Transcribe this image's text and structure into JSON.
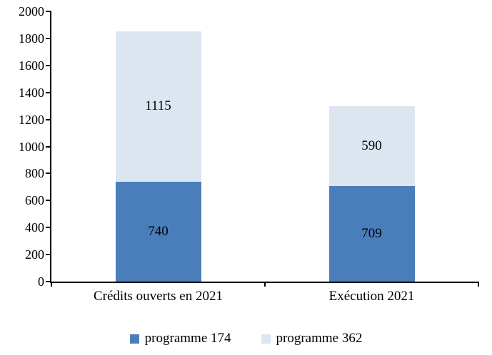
{
  "chart_data": {
    "type": "bar",
    "stacked": true,
    "title": "",
    "categories": [
      "Crédits ouverts en 2021",
      "Exécution 2021"
    ],
    "series": [
      {
        "name": "programme 174",
        "color": "#4A7EBB",
        "values": [
          740,
          709
        ]
      },
      {
        "name": "programme 362",
        "color": "#DCE6F1",
        "values": [
          1115,
          590
        ]
      }
    ],
    "ylim": [
      0,
      2000
    ],
    "yticks": [
      0,
      200,
      400,
      600,
      800,
      1000,
      1200,
      1400,
      1600,
      1800,
      2000
    ],
    "grid": false,
    "legend_position": "bottom",
    "bar_value_labels": true,
    "xlabel": "",
    "ylabel": ""
  },
  "colors": {
    "axis": "#000000",
    "text": "#000000",
    "background": "#FFFFFF"
  }
}
